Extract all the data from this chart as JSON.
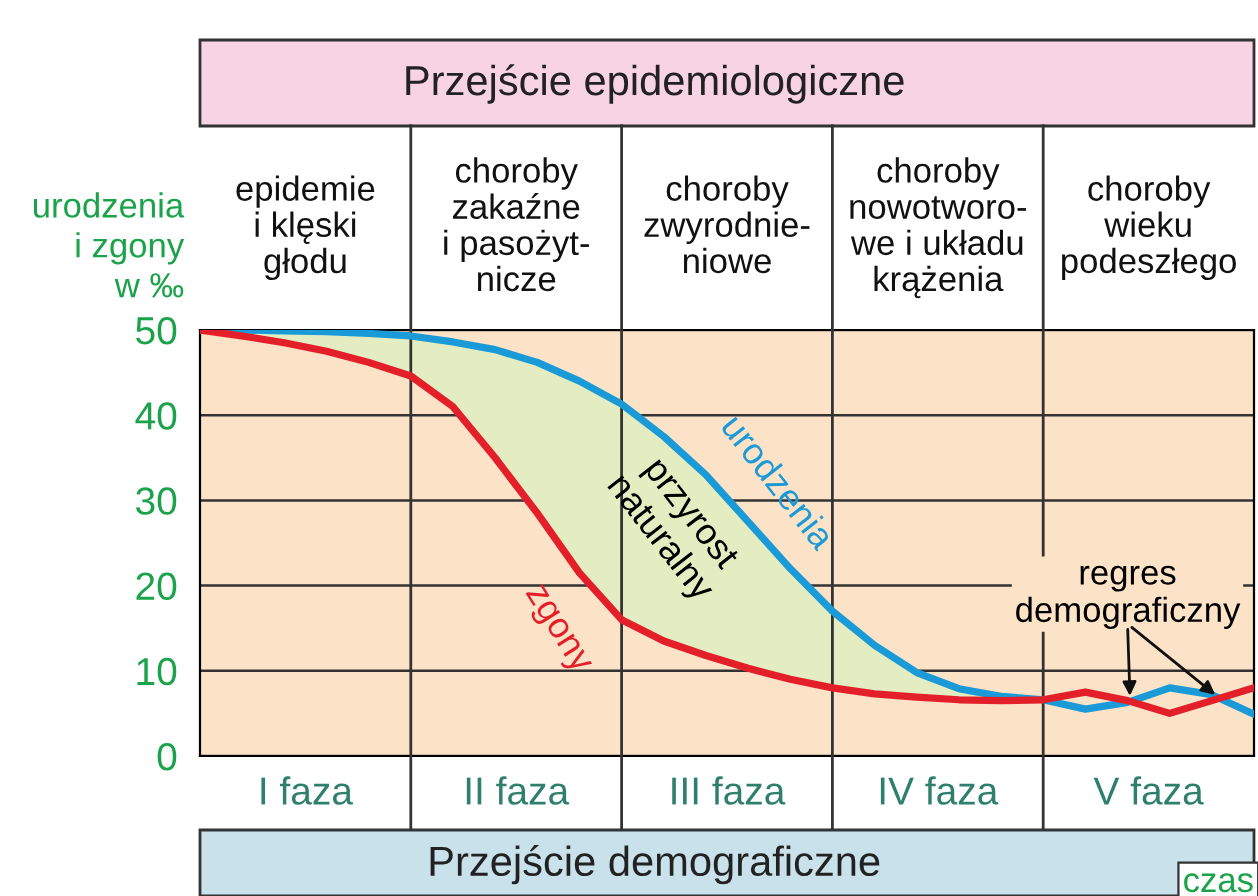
{
  "chart_data": {
    "type": "line",
    "title": "Przejście epidemiologiczne",
    "xlabel": "czas",
    "ylabel": "urodzenia\ni zgony\nw ‰",
    "categories": [
      null,
      null,
      null,
      null,
      null,
      null,
      null,
      null,
      null,
      null,
      null,
      null,
      null,
      null,
      null,
      null,
      null,
      null,
      null,
      null,
      null,
      null,
      null,
      null,
      null,
      null
    ],
    "ylim": [
      0,
      50
    ],
    "yticks": [
      0,
      10,
      20,
      30,
      40,
      50
    ],
    "grid": true,
    "legend": false,
    "marker": "none",
    "line_style": "solid",
    "series": [
      {
        "name": "urodzenia",
        "color": "#1a9ad6",
        "values": [
          50,
          50,
          49.9,
          49.8,
          49.6,
          49.3,
          48.6,
          47.7,
          46.2,
          44,
          41.3,
          37.5,
          33,
          27.5,
          22,
          17,
          13,
          9.8,
          7.9,
          7,
          6.6,
          5.5,
          6.3,
          8,
          7.2,
          4.9
        ],
        "lower": [
          50,
          49.3,
          48.5,
          47.5,
          46.2,
          44.6,
          41,
          35,
          28.5,
          21.5,
          16,
          13.5,
          11.8,
          10.3,
          9,
          8,
          7.3,
          6.9,
          6.6,
          6.5,
          6.6,
          null,
          null,
          null,
          null,
          null
        ],
        "upper": [
          50,
          50,
          49.9,
          49.8,
          49.6,
          49.3,
          48.6,
          47.7,
          46.2,
          44,
          41.3,
          37.5,
          33,
          27.5,
          22,
          17,
          13,
          9.8,
          7.9,
          7,
          6.6,
          null,
          null,
          null,
          null,
          null
        ]
      },
      {
        "name": "zgony",
        "color": "#e3202a",
        "values": [
          50,
          49.3,
          48.5,
          47.5,
          46.2,
          44.6,
          41,
          35,
          28.5,
          21.5,
          16,
          13.5,
          11.8,
          10.3,
          9,
          8,
          7.3,
          6.9,
          6.6,
          6.5,
          6.6,
          7.5,
          6.5,
          5,
          6.5,
          8
        ]
      }
    ],
    "annotations": [
      "przyrost\nnaturalny",
      "regres\ndemograficzny",
      "Przejście demograficzne",
      "epidemie\ni klęski\ngłodu",
      "choroby\nzakaźne\ni pasożyt-\nnicze",
      "choroby\nzwyrodnie-\nniowe",
      "choroby\nnowotworo-\nwe i układu\nkrążenia",
      "choroby\nwieku\npodeszłego",
      "I faza",
      "II faza",
      "III faza",
      "IV faza",
      "V faza"
    ]
  }
}
